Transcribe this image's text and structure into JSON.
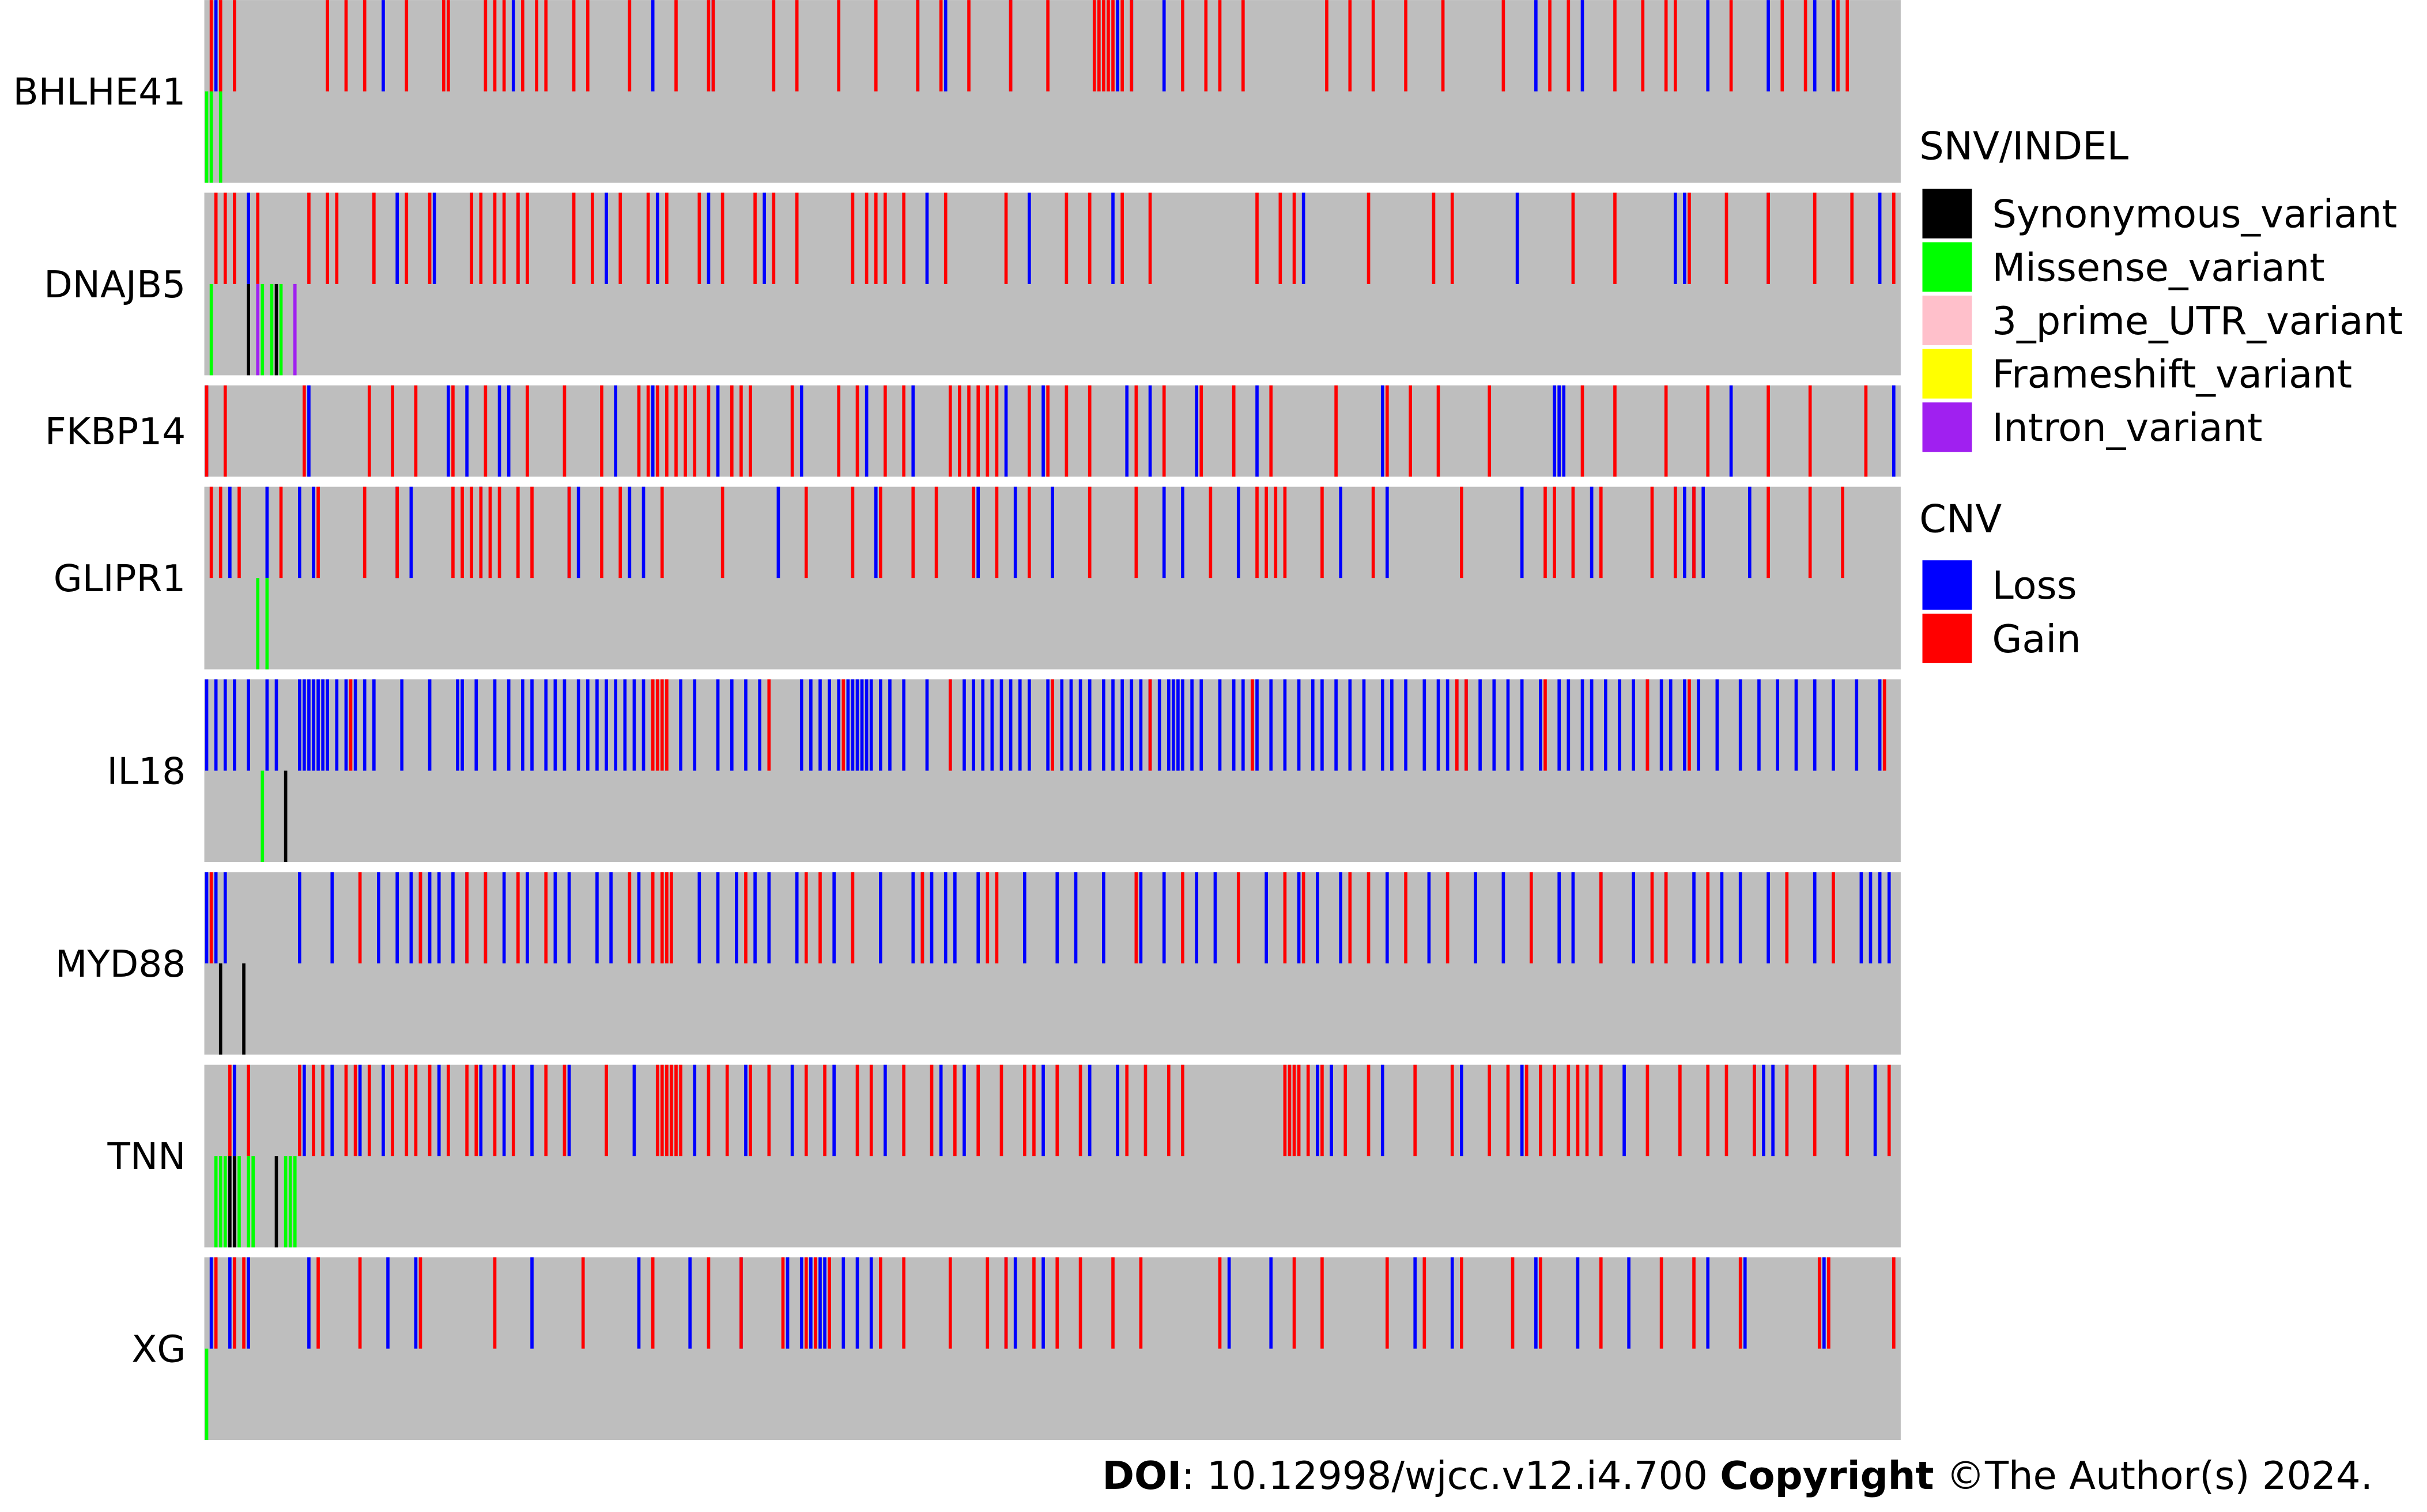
{
  "chart_data": {
    "type": "oncoprint",
    "xlim": [
      0,
      365
    ],
    "genes": [
      {
        "name": "BHLHE41",
        "gain": [
          1,
          3,
          6,
          26,
          30,
          34,
          43,
          51,
          52,
          60,
          62,
          64,
          68,
          71,
          73,
          79,
          82,
          91,
          101,
          108,
          109,
          122,
          127,
          136,
          144,
          153,
          158,
          164,
          173,
          181,
          191,
          192,
          193,
          194,
          195,
          197,
          199,
          210,
          215,
          218,
          223,
          241,
          246,
          251,
          258,
          266,
          279,
          289,
          293,
          303,
          309,
          314,
          316,
          328,
          339,
          344,
          351,
          353
        ],
        "loss": [
          2,
          38,
          66,
          96,
          109,
          153,
          159,
          173,
          196,
          199,
          206,
          286,
          296,
          323,
          336,
          346,
          350
        ],
        "mutations": [
          {
            "sample": 0,
            "type": "Missense_variant"
          },
          {
            "sample": 1,
            "type": "Missense_variant"
          },
          {
            "sample": 3,
            "type": "Missense_variant"
          }
        ]
      },
      {
        "name": "DNAJB5",
        "gain": [
          2,
          4,
          6,
          11,
          22,
          26,
          28,
          36,
          43,
          48,
          57,
          59,
          62,
          64,
          67,
          69,
          79,
          83,
          89,
          95,
          99,
          106,
          111,
          118,
          122,
          127,
          139,
          142,
          144,
          146,
          150,
          159,
          172,
          185,
          190,
          197,
          203,
          226,
          231,
          234,
          250,
          264,
          268,
          294,
          303,
          319,
          327,
          336,
          346,
          354,
          363
        ],
        "loss": [
          9,
          41,
          49,
          57,
          67,
          86,
          97,
          108,
          120,
          155,
          177,
          195,
          236,
          282,
          316,
          318,
          336,
          360
        ],
        "mutations": [
          {
            "sample": 1,
            "type": "Missense_variant"
          },
          {
            "sample": 9,
            "type": "Synonymous_variant"
          },
          {
            "sample": 11,
            "type": "Intron_variant"
          },
          {
            "sample": 12,
            "type": "Missense_variant"
          },
          {
            "sample": 14,
            "type": "Missense_variant"
          },
          {
            "sample": 15,
            "type": "Synonymous_variant"
          },
          {
            "sample": 16,
            "type": "Missense_variant"
          },
          {
            "sample": 19,
            "type": "Intron_variant"
          }
        ]
      },
      {
        "name": "FKBP14",
        "gain": [
          0,
          4,
          21,
          35,
          40,
          45,
          53,
          60,
          69,
          77,
          85,
          93,
          95,
          97,
          99,
          101,
          103,
          105,
          108,
          113,
          115,
          117,
          126,
          136,
          140,
          146,
          150,
          160,
          162,
          164,
          166,
          168,
          170,
          177,
          181,
          185,
          190,
          200,
          206,
          214,
          221,
          229,
          243,
          254,
          259,
          265,
          276,
          296,
          303,
          314,
          323,
          336,
          345,
          357
        ],
        "loss": [
          0,
          22,
          52,
          56,
          63,
          65,
          88,
          96,
          110,
          128,
          142,
          152,
          172,
          180,
          198,
          203,
          213,
          226,
          253,
          290,
          291,
          292,
          328,
          363
        ],
        "mutations": []
      },
      {
        "name": "GLIPR1",
        "gain": [
          1,
          3,
          7,
          16,
          24,
          34,
          41,
          53,
          55,
          57,
          59,
          61,
          63,
          67,
          70,
          78,
          85,
          89,
          98,
          111,
          129,
          139,
          145,
          152,
          157,
          165,
          170,
          177,
          190,
          200,
          216,
          226,
          228,
          230,
          232,
          240,
          251,
          270,
          288,
          290,
          294,
          300,
          311,
          316,
          320,
          336,
          345,
          352
        ],
        "loss": [
          5,
          13,
          20,
          23,
          41,
          44,
          59,
          78,
          80,
          91,
          94,
          123,
          144,
          166,
          174,
          182,
          206,
          210,
          222,
          244,
          254,
          283,
          298,
          316,
          318,
          320,
          322,
          332
        ],
        "mutations": [
          {
            "sample": 11,
            "type": "Missense_variant"
          },
          {
            "sample": 13,
            "type": "Missense_variant"
          }
        ]
      },
      {
        "name": "IL18",
        "gain": [
          31,
          96,
          97,
          98,
          99,
          121,
          137,
          160,
          182,
          203,
          225,
          269,
          271,
          288,
          310,
          319,
          361
        ],
        "loss": [
          0,
          2,
          4,
          6,
          9,
          13,
          15,
          20,
          21,
          22,
          23,
          24,
          25,
          26,
          28,
          30,
          32,
          34,
          36,
          42,
          48,
          54,
          55,
          58,
          62,
          65,
          68,
          70,
          73,
          75,
          77,
          80,
          82,
          84,
          86,
          88,
          90,
          92,
          94,
          102,
          105,
          110,
          113,
          116,
          119,
          128,
          130,
          132,
          134,
          136,
          138,
          139,
          140,
          141,
          142,
          143,
          145,
          147,
          150,
          155,
          160,
          163,
          165,
          167,
          169,
          171,
          173,
          175,
          177,
          181,
          184,
          186,
          188,
          190,
          193,
          195,
          197,
          199,
          201,
          203,
          205,
          207,
          208,
          209,
          210,
          212,
          214,
          218,
          221,
          223,
          226,
          229,
          232,
          235,
          238,
          240,
          243,
          246,
          249,
          253,
          255,
          258,
          262,
          265,
          267,
          269,
          271,
          274,
          277,
          280,
          283,
          287,
          291,
          293,
          296,
          298,
          301,
          304,
          307,
          310,
          313,
          315,
          318,
          321,
          325,
          330,
          334,
          338,
          342,
          346,
          350,
          355,
          360
        ],
        "mutations": [
          {
            "sample": 12,
            "type": "Missense_variant"
          },
          {
            "sample": 17,
            "type": "Synonymous_variant"
          }
        ]
      },
      {
        "name": "MYD88",
        "gain": [
          1,
          33,
          46,
          56,
          60,
          67,
          73,
          91,
          96,
          98,
          99,
          100,
          116,
          129,
          132,
          139,
          154,
          168,
          170,
          200,
          210,
          222,
          232,
          236,
          246,
          250,
          258,
          267,
          285,
          300,
          311,
          314,
          323,
          340,
          350
        ],
        "loss": [
          0,
          2,
          4,
          20,
          27,
          37,
          41,
          44,
          46,
          48,
          50,
          53,
          56,
          60,
          64,
          69,
          75,
          78,
          84,
          87,
          93,
          106,
          110,
          114,
          118,
          121,
          127,
          135,
          145,
          152,
          154,
          156,
          159,
          161,
          166,
          176,
          183,
          187,
          193,
          201,
          206,
          213,
          217,
          228,
          235,
          239,
          244,
          254,
          263,
          273,
          279,
          291,
          294,
          300,
          307,
          314,
          320,
          326,
          330,
          336,
          346,
          356,
          358,
          360,
          362
        ],
        "mutations": [
          {
            "sample": 3,
            "type": "Synonymous_variant"
          },
          {
            "sample": 8,
            "type": "Synonymous_variant"
          }
        ]
      },
      {
        "name": "TNN",
        "gain": [
          5,
          9,
          20,
          23,
          25,
          30,
          32,
          35,
          40,
          43,
          45,
          48,
          52,
          56,
          58,
          62,
          66,
          73,
          77,
          86,
          97,
          98,
          99,
          100,
          101,
          102,
          108,
          112,
          117,
          121,
          129,
          133,
          140,
          143,
          150,
          156,
          161,
          166,
          171,
          176,
          178,
          183,
          188,
          198,
          202,
          207,
          210,
          232,
          233,
          234,
          235,
          237,
          240,
          245,
          250,
          260,
          268,
          276,
          280,
          284,
          287,
          290,
          293,
          295,
          297,
          300,
          310,
          317,
          323,
          327,
          333,
          340,
          346,
          353,
          362
        ],
        "loss": [
          6,
          21,
          27,
          33,
          38,
          50,
          59,
          64,
          70,
          78,
          92,
          105,
          116,
          126,
          135,
          146,
          158,
          163,
          180,
          190,
          196,
          239,
          242,
          253,
          270,
          283,
          305,
          333,
          335,
          337,
          340,
          359
        ],
        "mutations": [
          {
            "sample": 2,
            "type": "Missense_variant"
          },
          {
            "sample": 3,
            "type": "Missense_variant"
          },
          {
            "sample": 4,
            "type": "Missense_variant"
          },
          {
            "sample": 5,
            "type": "Synonymous_variant"
          },
          {
            "sample": 6,
            "type": "Synonymous_variant"
          },
          {
            "sample": 7,
            "type": "Missense_variant"
          },
          {
            "sample": 9,
            "type": "Missense_variant"
          },
          {
            "sample": 10,
            "type": "Missense_variant"
          },
          {
            "sample": 15,
            "type": "Synonymous_variant"
          },
          {
            "sample": 17,
            "type": "Missense_variant"
          },
          {
            "sample": 18,
            "type": "Missense_variant"
          },
          {
            "sample": 19,
            "type": "Missense_variant"
          }
        ]
      },
      {
        "name": "XG",
        "gain": [
          2,
          6,
          8,
          24,
          33,
          46,
          62,
          81,
          96,
          108,
          115,
          124,
          129,
          131,
          134,
          145,
          150,
          160,
          168,
          172,
          178,
          183,
          188,
          195,
          201,
          218,
          234,
          240,
          254,
          262,
          270,
          281,
          287,
          300,
          313,
          320,
          330,
          347,
          349,
          363
        ],
        "loss": [
          1,
          5,
          9,
          22,
          39,
          45,
          70,
          93,
          104,
          115,
          125,
          128,
          130,
          132,
          133,
          137,
          140,
          143,
          172,
          174,
          180,
          220,
          229,
          260,
          268,
          286,
          295,
          306,
          323,
          331,
          348
        ],
        "mutations": [
          {
            "sample": 0,
            "type": "Missense_variant"
          }
        ]
      }
    ],
    "snv_title": "SNV/INDEL",
    "snv_legend": [
      {
        "name": "Synonymous_variant",
        "color": "#000000"
      },
      {
        "name": "Missense_variant",
        "color": "#00ff00"
      },
      {
        "name": "3_prime_UTR_variant",
        "color": "#ffc0cb"
      },
      {
        "name": "Frameshift_variant",
        "color": "#ffff00"
      },
      {
        "name": "Intron_variant",
        "color": "#a020f0"
      }
    ],
    "cnv_title": "CNV",
    "cnv_legend": [
      {
        "name": "Loss",
        "color": "#0000ff",
        "key": "loss"
      },
      {
        "name": "Gain",
        "color": "#ff0000",
        "key": "gain"
      }
    ],
    "background_color": "#bebebe",
    "footer": {
      "doi_label": "DOI",
      "doi_text": ": 10.12998/wjcc.v12.i4.700 ",
      "copyright_label": "Copyright",
      "copyright_text": " ©The Author(s) 2024."
    }
  }
}
